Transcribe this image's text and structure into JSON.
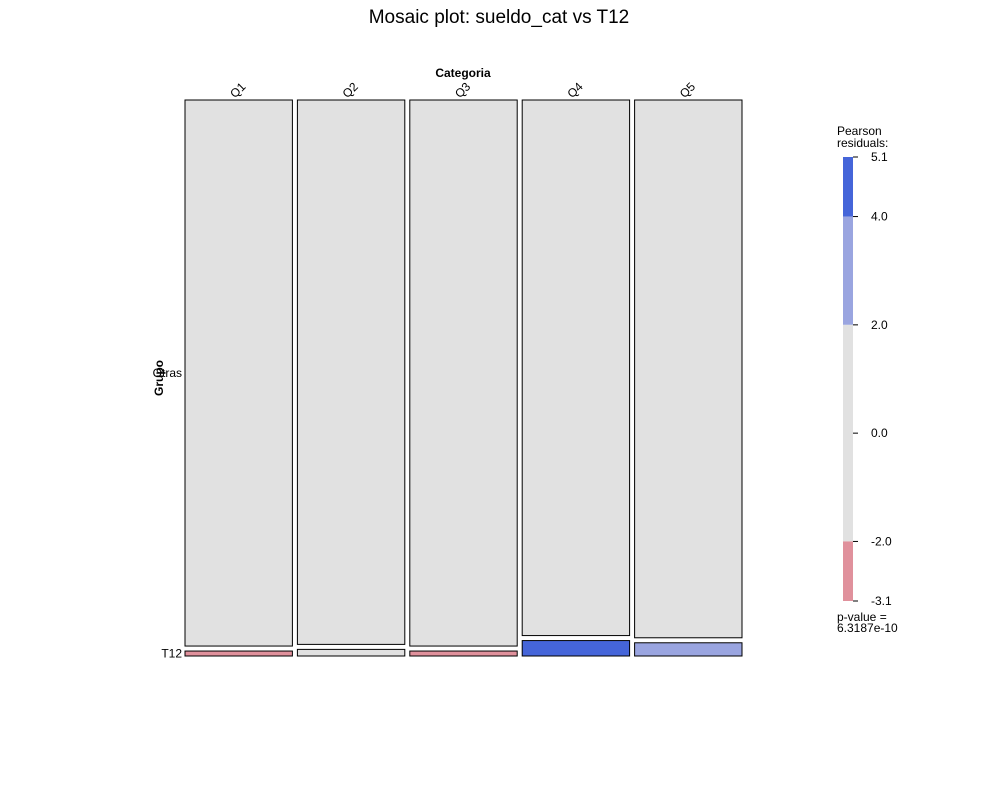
{
  "chart_data": {
    "type": "mosaic",
    "title": "Mosaic plot: sueldo_cat vs T12",
    "column_variable": "Categoria",
    "row_variable": "Grupo",
    "columns": [
      "Q1",
      "Q2",
      "Q3",
      "Q4",
      "Q5"
    ],
    "rows": [
      "Otras",
      "T12"
    ],
    "column_proportions": [
      0.2,
      0.2,
      0.2,
      0.2,
      0.2
    ],
    "row_proportions_within_column": {
      "Q1": [
        0.991,
        0.009
      ],
      "Q2": [
        0.988,
        0.012
      ],
      "Q3": [
        0.991,
        0.009
      ],
      "Q4": [
        0.972,
        0.028
      ],
      "Q5": [
        0.976,
        0.024
      ]
    },
    "residual_shading": {
      "Otras": [
        "mid",
        "mid",
        "mid",
        "mid",
        "mid"
      ],
      "T12": [
        "neg",
        "mid",
        "neg",
        "high",
        "pos"
      ]
    },
    "legend": {
      "title_line1": "Pearson",
      "title_line2": "residuals:",
      "range": [
        -3.1,
        5.1
      ],
      "tick_values": [
        5.1,
        4.0,
        2.0,
        0.0,
        -2.0,
        -3.1
      ],
      "tick_labels": [
        "5.1",
        "4.0",
        "2.0",
        "0.0",
        "-2.0",
        "-3.1"
      ],
      "bands": [
        {
          "from": 4.0,
          "to": 5.1,
          "shade": "high"
        },
        {
          "from": 2.0,
          "to": 4.0,
          "shade": "pos"
        },
        {
          "from": -2.0,
          "to": 2.0,
          "shade": "mid"
        },
        {
          "from": -3.1,
          "to": -2.0,
          "shade": "neg"
        }
      ],
      "pvalue_line1": "p-value =",
      "pvalue_line2": "6.3187e-10"
    },
    "colors": {
      "high": "#4565d9",
      "pos": "#9aa5e0",
      "mid": "#e1e1e1",
      "neg": "#e0919c",
      "border": "#000000"
    }
  }
}
